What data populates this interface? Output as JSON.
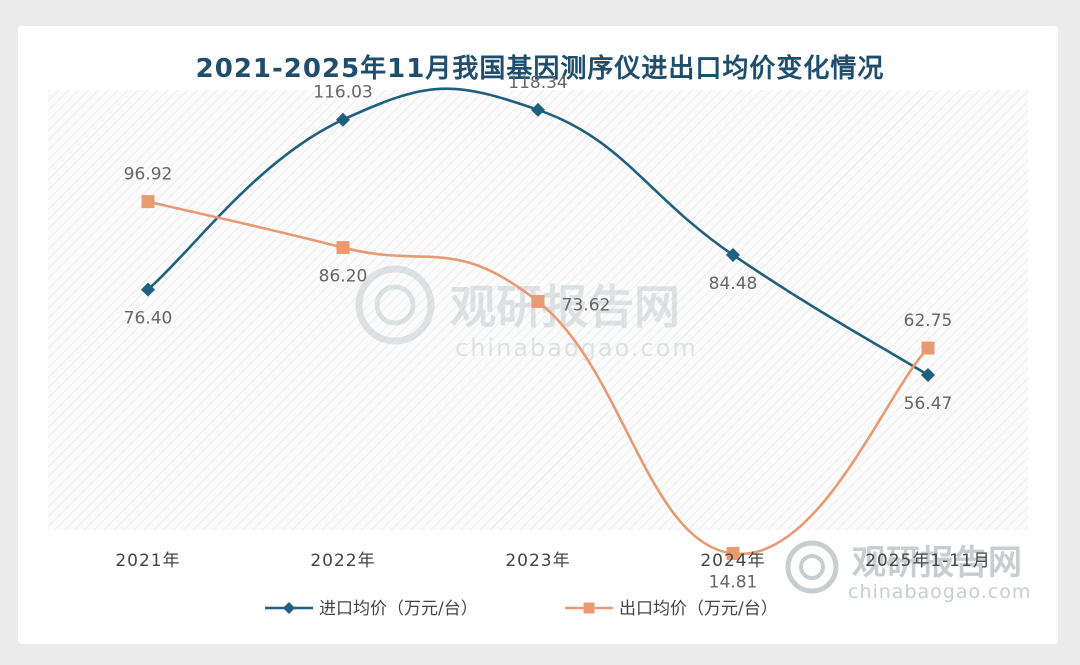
{
  "chart_data": {
    "type": "line",
    "title": "2021-2025年11月我国基因测序仪进出口均价变化情况",
    "categories": [
      "2021年",
      "2022年",
      "2023年",
      "2024年",
      "2025年1-11月"
    ],
    "series": [
      {
        "name": "进口均价（万元/台）",
        "values": [
          76.4,
          116.03,
          118.34,
          84.48,
          56.47
        ],
        "labels": [
          "76.40",
          "116.03",
          "118.34",
          "84.48",
          "56.47"
        ],
        "color": "#1f5f7f",
        "marker": "diamond"
      },
      {
        "name": "出口均价（万元/台）",
        "values": [
          96.92,
          86.2,
          73.62,
          14.81,
          62.75
        ],
        "labels": [
          "96.92",
          "86.20",
          "73.62",
          "14.81",
          "62.75"
        ],
        "color": "#e89a73",
        "marker": "square"
      }
    ],
    "ylim": [
      0,
      140
    ],
    "grid": false,
    "legend": "bottom",
    "watermark": {
      "brand": "观研报告网",
      "site": "chinabaogao.com"
    }
  }
}
